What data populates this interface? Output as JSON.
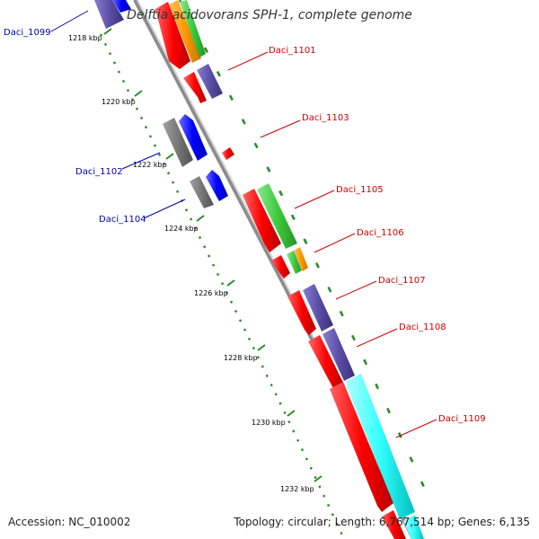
{
  "title": "Delftia acidovorans SPH-1, complete genome",
  "accession": "Accession: NC_010002",
  "summary": "Topology: circular; Length: 6,767,514 bp; Genes: 6,135",
  "colors": {
    "backbone": "#8c8c8c",
    "tick": "#2a8a2a",
    "label_plus": "#cc0000",
    "label_minus": "#0000aa"
  },
  "ticks": [
    "1218 kbp",
    "1220 kbp",
    "1222 kbp",
    "1224 kbp",
    "1226 kbp",
    "1228 kbp",
    "1230 kbp",
    "1232 kbp"
  ],
  "genes": [
    {
      "label": "Daci_1099",
      "strand": "minus"
    },
    {
      "label": "Daci_1101",
      "strand": "plus"
    },
    {
      "label": "Daci_1103",
      "strand": "plus"
    },
    {
      "label": "Daci_1102",
      "strand": "minus"
    },
    {
      "label": "Daci_1104",
      "strand": "minus"
    },
    {
      "label": "Daci_1105",
      "strand": "plus"
    },
    {
      "label": "Daci_1106",
      "strand": "plus"
    },
    {
      "label": "Daci_1107",
      "strand": "plus"
    },
    {
      "label": "Daci_1108",
      "strand": "plus"
    },
    {
      "label": "Daci_1109",
      "strand": "plus"
    }
  ]
}
